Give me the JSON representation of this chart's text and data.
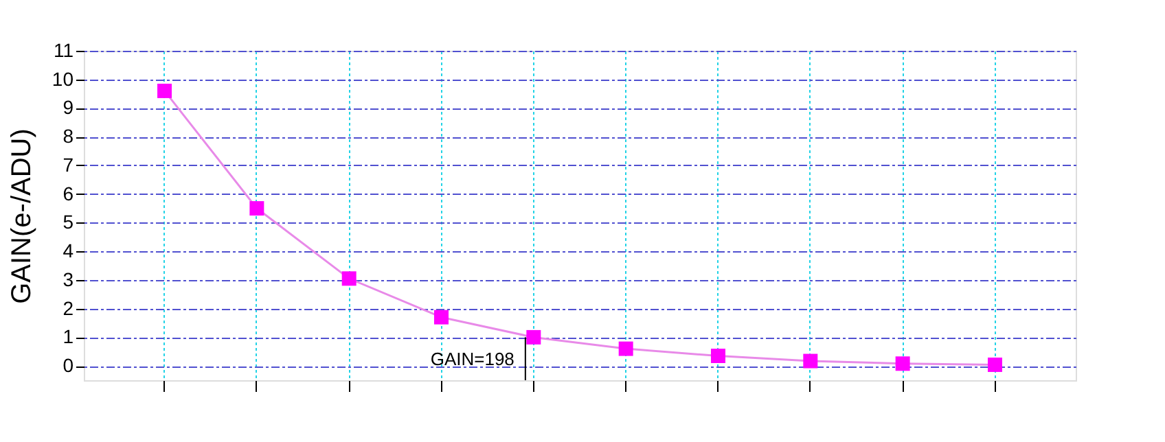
{
  "chart_data": {
    "type": "line",
    "ylabel": "GAIN(e-/ADU)",
    "categories": [
      null,
      null,
      null,
      null,
      null,
      null,
      null,
      null,
      null,
      null
    ],
    "series": [
      {
        "color": "#ff00ff",
        "values": [
          9.6,
          5.5,
          3.05,
          1.7,
          1.0,
          0.6,
          0.35,
          0.17,
          0.08,
          0.04
        ]
      }
    ],
    "ylim": [
      -0.5,
      11
    ],
    "yticks": [
      0,
      1,
      2,
      3,
      4,
      5,
      6,
      7,
      8,
      9,
      10,
      11
    ],
    "annotations": [
      "GAIN=198"
    ],
    "grid": true,
    "marker": "square",
    "line_style": "solid",
    "tick_labels": "y"
  }
}
